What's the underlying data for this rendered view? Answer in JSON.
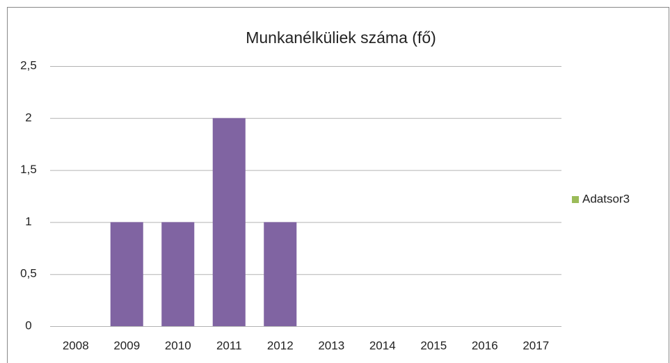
{
  "chart_data": {
    "type": "bar",
    "title": "Munkanélküliek száma (fő)",
    "categories": [
      "2008",
      "2009",
      "2010",
      "2011",
      "2012",
      "2013",
      "2014",
      "2015",
      "2016",
      "2017"
    ],
    "series": [
      {
        "name": "Adatsor3",
        "color": "#8064a2",
        "legend_color": "#9bbb59",
        "values": [
          0,
          1,
          1,
          2,
          1,
          0,
          0,
          0,
          0,
          0
        ]
      }
    ],
    "ylim": [
      0,
      2.5
    ],
    "yticks": [
      0,
      {
        "value": 0.5,
        "label": "0,5"
      },
      1,
      {
        "value": 1.5,
        "label": "1,5"
      },
      2,
      {
        "value": 2.5,
        "label": "2,5"
      }
    ],
    "grid": true,
    "legend": "right"
  }
}
